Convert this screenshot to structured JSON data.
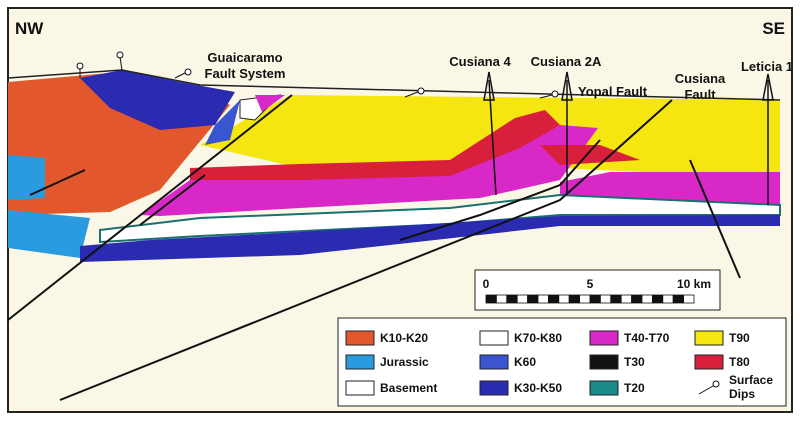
{
  "header": {
    "left": "NW",
    "right": "SE"
  },
  "labels": {
    "guaicaramo": [
      "Guaicaramo",
      "Fault System"
    ],
    "wells": [
      "Cusiana 4",
      "Cusiana 2A",
      "Leticia 1"
    ],
    "yopal_fault": "Yopal Fault",
    "cusiana_fault": [
      "Cusiana",
      "Fault"
    ]
  },
  "scale_bar": {
    "ticks": [
      "0",
      "5",
      "10 km"
    ]
  },
  "legend": {
    "items": [
      "K10-K20",
      "Jurassic",
      "Basement",
      "K70-K80",
      "K60",
      "K30-K50",
      "T40-T70",
      "T30",
      "T20",
      "T90",
      "T80",
      [
        "Surface",
        "Dips"
      ]
    ]
  }
}
